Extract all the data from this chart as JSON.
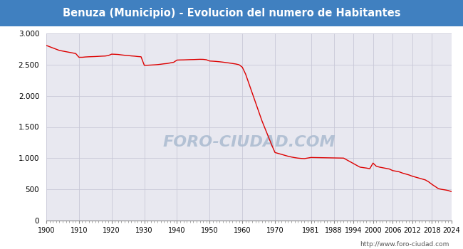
{
  "title": "Benuza (Municipio) - Evolucion del numero de Habitantes",
  "title_bg_color": "#4080c0",
  "title_text_color": "#ffffff",
  "line_color": "#dd0000",
  "bg_color": "#ffffff",
  "plot_bg_color": "#e8e8f0",
  "grid_color": "#c8c8d8",
  "watermark_text": "FORO-CIUDAD.COM",
  "footer_text": "http://www.foro-ciudad.com",
  "outer_border_color": "#4080c0",
  "ylim": [
    0,
    3000
  ],
  "yticks": [
    0,
    500,
    1000,
    1500,
    2000,
    2500,
    3000
  ],
  "ytick_labels": [
    "0",
    "500",
    "1.000",
    "1.500",
    "2.000",
    "2.500",
    "3.000"
  ],
  "xtick_labels": [
    "1900",
    "1910",
    "1920",
    "1930",
    "1940",
    "1950",
    "1960",
    "1970",
    "1981",
    "1988",
    "1994",
    "2000",
    "2006",
    "2012",
    "2018",
    "2024"
  ],
  "years": [
    1900,
    1901,
    1902,
    1903,
    1904,
    1905,
    1906,
    1907,
    1908,
    1909,
    1910,
    1911,
    1912,
    1913,
    1914,
    1915,
    1916,
    1917,
    1918,
    1919,
    1920,
    1921,
    1922,
    1923,
    1924,
    1925,
    1926,
    1927,
    1928,
    1929,
    1930,
    1931,
    1932,
    1933,
    1934,
    1935,
    1936,
    1937,
    1938,
    1939,
    1940,
    1941,
    1942,
    1943,
    1944,
    1945,
    1946,
    1947,
    1948,
    1949,
    1950,
    1951,
    1952,
    1953,
    1954,
    1955,
    1956,
    1957,
    1958,
    1959,
    1960,
    1961,
    1962,
    1963,
    1964,
    1965,
    1966,
    1967,
    1968,
    1969,
    1970,
    1971,
    1972,
    1973,
    1974,
    1975,
    1976,
    1977,
    1978,
    1979,
    1981,
    1986,
    1991,
    1996,
    1998,
    1999,
    2000,
    2001,
    2002,
    2003,
    2004,
    2005,
    2006,
    2007,
    2008,
    2009,
    2010,
    2011,
    2012,
    2013,
    2014,
    2015,
    2016,
    2017,
    2018,
    2019,
    2020,
    2021,
    2022,
    2023,
    2024
  ],
  "population": [
    2810,
    2790,
    2770,
    2750,
    2730,
    2720,
    2710,
    2700,
    2690,
    2680,
    2620,
    2620,
    2625,
    2628,
    2630,
    2632,
    2635,
    2638,
    2640,
    2648,
    2670,
    2668,
    2665,
    2658,
    2652,
    2648,
    2642,
    2638,
    2632,
    2628,
    2490,
    2492,
    2495,
    2498,
    2502,
    2508,
    2515,
    2520,
    2530,
    2540,
    2575,
    2577,
    2578,
    2580,
    2582,
    2583,
    2585,
    2587,
    2586,
    2580,
    2560,
    2557,
    2553,
    2548,
    2542,
    2535,
    2528,
    2520,
    2512,
    2500,
    2460,
    2350,
    2200,
    2050,
    1900,
    1750,
    1600,
    1470,
    1340,
    1210,
    1090,
    1075,
    1060,
    1045,
    1030,
    1018,
    1008,
    1000,
    995,
    992,
    1010,
    1005,
    1000,
    855,
    840,
    830,
    920,
    870,
    855,
    845,
    835,
    825,
    800,
    790,
    780,
    760,
    745,
    730,
    710,
    695,
    680,
    665,
    650,
    620,
    580,
    545,
    510,
    498,
    490,
    480,
    462
  ]
}
